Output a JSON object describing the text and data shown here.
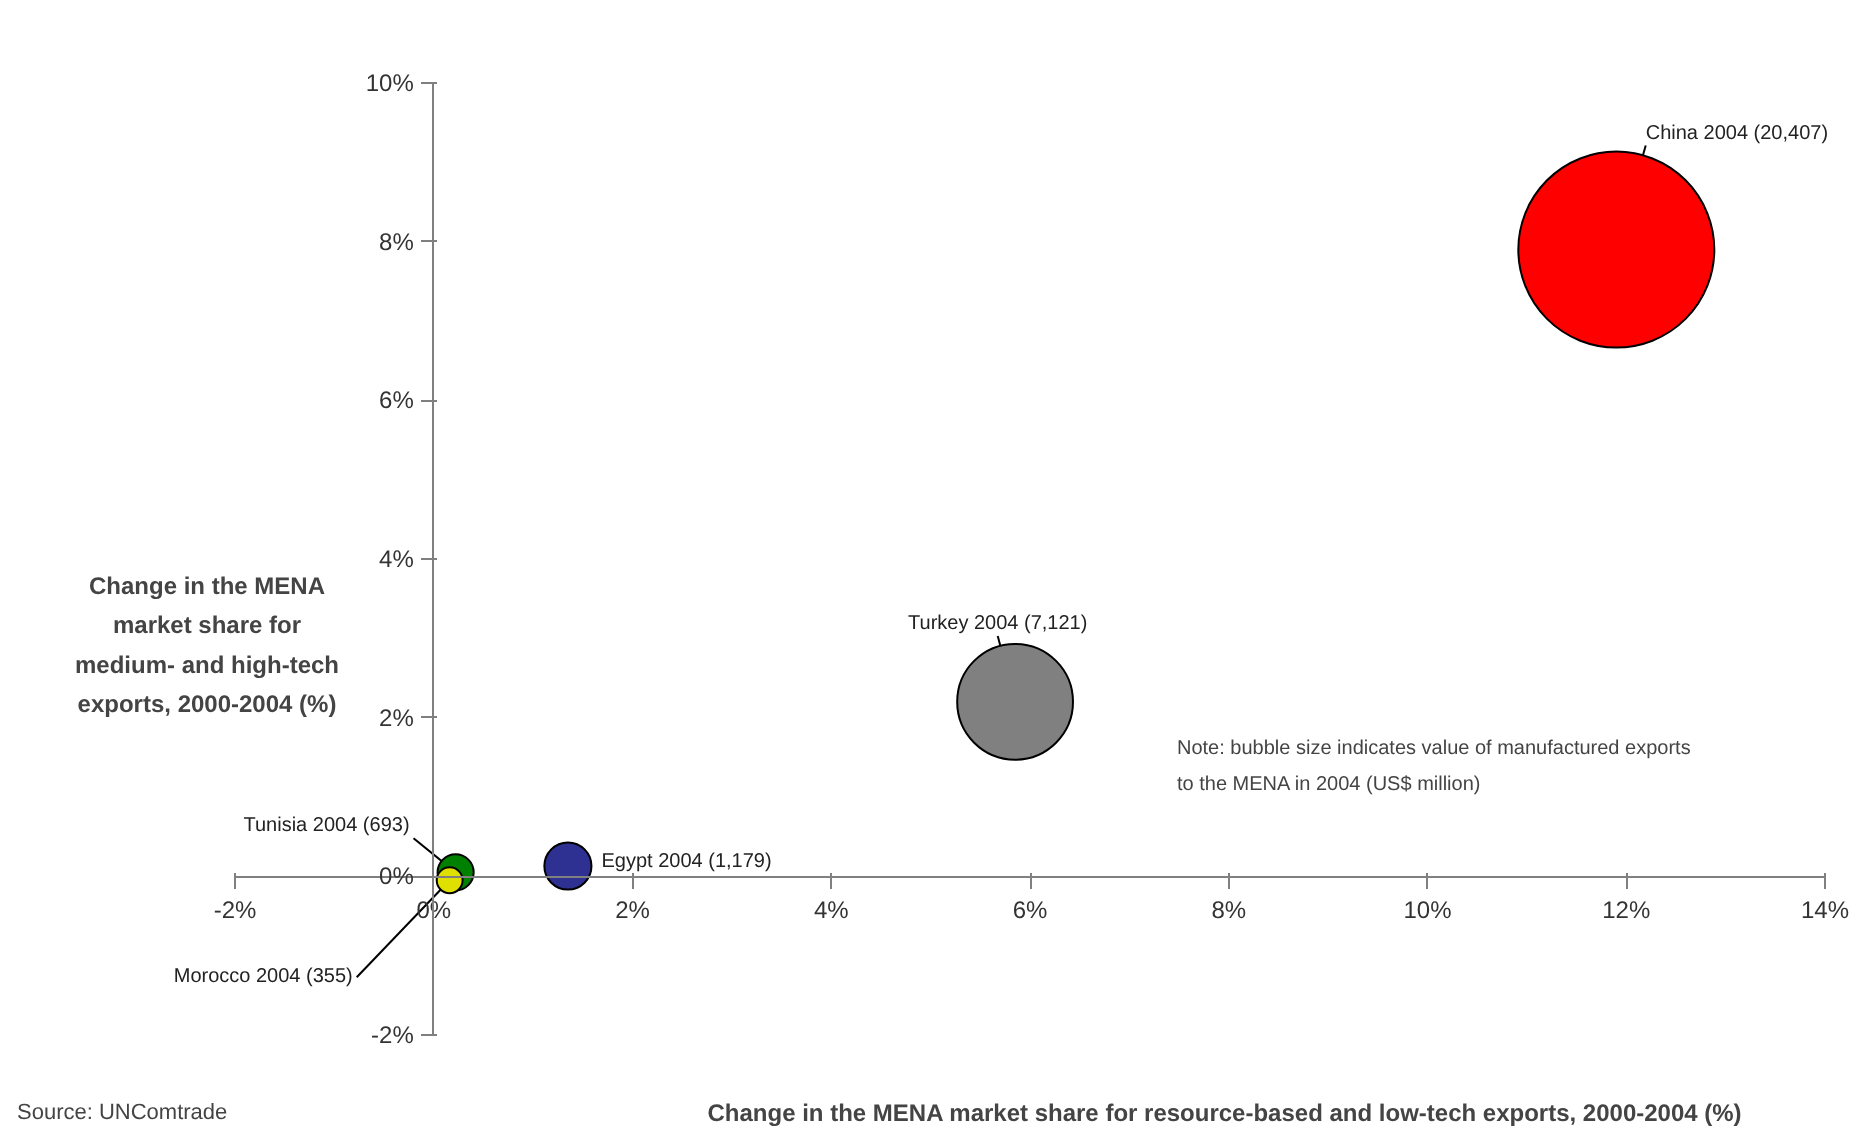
{
  "chart_data": {
    "type": "bubble",
    "xlabel": "Change in the MENA market share for resource-based and low-tech exports, 2000-2004 (%)",
    "ylabel": "Change in the MENA market share for medium- and high-tech exports, 2000-2004 (%)",
    "x": [
      11.9,
      5.85,
      1.35,
      0.22,
      0.16
    ],
    "values": [
      7.9,
      2.2,
      0.13,
      0.05,
      -0.05
    ],
    "sizes": [
      1,
      0.349,
      0.0578,
      0.034,
      0.0174
    ],
    "colors": [
      "#ff0000",
      "#808080",
      "#2e3192",
      "#008000",
      "#e0e000"
    ],
    "xlim": [
      -2,
      14
    ],
    "ylim": [
      -2,
      10
    ],
    "xticks": [
      {
        "value": -2,
        "label": "-2%"
      },
      {
        "value": 0,
        "label": "0%"
      },
      {
        "value": 2,
        "label": "2%"
      },
      {
        "value": 4,
        "label": "4%"
      },
      {
        "value": 6,
        "label": "6%"
      },
      {
        "value": 8,
        "label": "8%"
      },
      {
        "value": 10,
        "label": "10%"
      },
      {
        "value": 12,
        "label": "12%"
      },
      {
        "value": 14,
        "label": "14%"
      }
    ],
    "yticks": [
      {
        "value": -2,
        "label": "-2%"
      },
      {
        "value": 0,
        "label": "0%"
      },
      {
        "value": 2,
        "label": "2%"
      },
      {
        "value": 4,
        "label": "4%"
      },
      {
        "value": 6,
        "label": "6%"
      },
      {
        "value": 8,
        "label": "8%"
      },
      {
        "value": 10,
        "label": "10%"
      }
    ],
    "grid": false,
    "annotations": [
      {
        "text": "China 2004 (20,407)",
        "x": 11.9,
        "y": 7.9
      },
      {
        "text": "Turkey 2004 (7,121)",
        "x": 5.85,
        "y": 2.2
      },
      {
        "text": "Egypt 2004 (1,179)",
        "x": 1.35,
        "y": 0.13
      },
      {
        "text": "Tunisia 2004 (693)",
        "x": 0.22,
        "y": 0.05
      },
      {
        "text": "Morocco 2004 (355)",
        "x": 0.16,
        "y": -0.05
      },
      "Note: bubble size indicates value of manufactured exports to the MENA in 2004 (US$ million)",
      "Source: UNComtrade"
    ]
  }
}
